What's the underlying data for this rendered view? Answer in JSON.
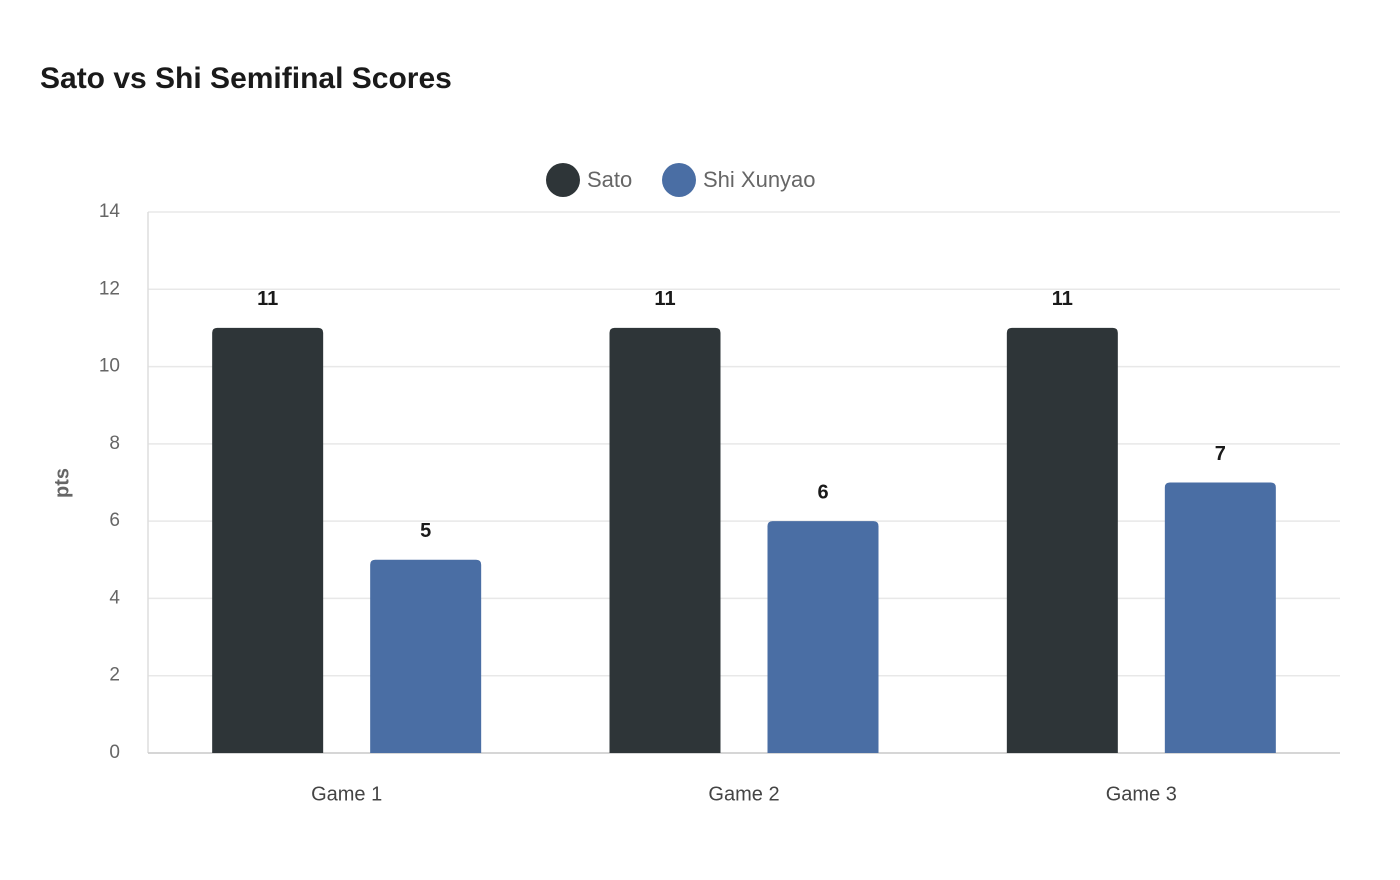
{
  "chart_data": {
    "type": "bar",
    "title": "Sato vs Shi Semifinal Scores",
    "y_label": "pts",
    "categories": [
      "Game 1",
      "Game 2",
      "Game 3"
    ],
    "series": [
      {
        "name": "Sato",
        "color": "#2e3538",
        "values": [
          11,
          11,
          11
        ]
      },
      {
        "name": "Shi Xunyao",
        "color": "#4a6ea4",
        "values": [
          5,
          6,
          7
        ]
      }
    ],
    "ylim": [
      0,
      14
    ],
    "yticks": [
      0,
      2,
      4,
      6,
      8,
      10,
      12,
      14
    ],
    "grid": true,
    "legend": "top"
  }
}
